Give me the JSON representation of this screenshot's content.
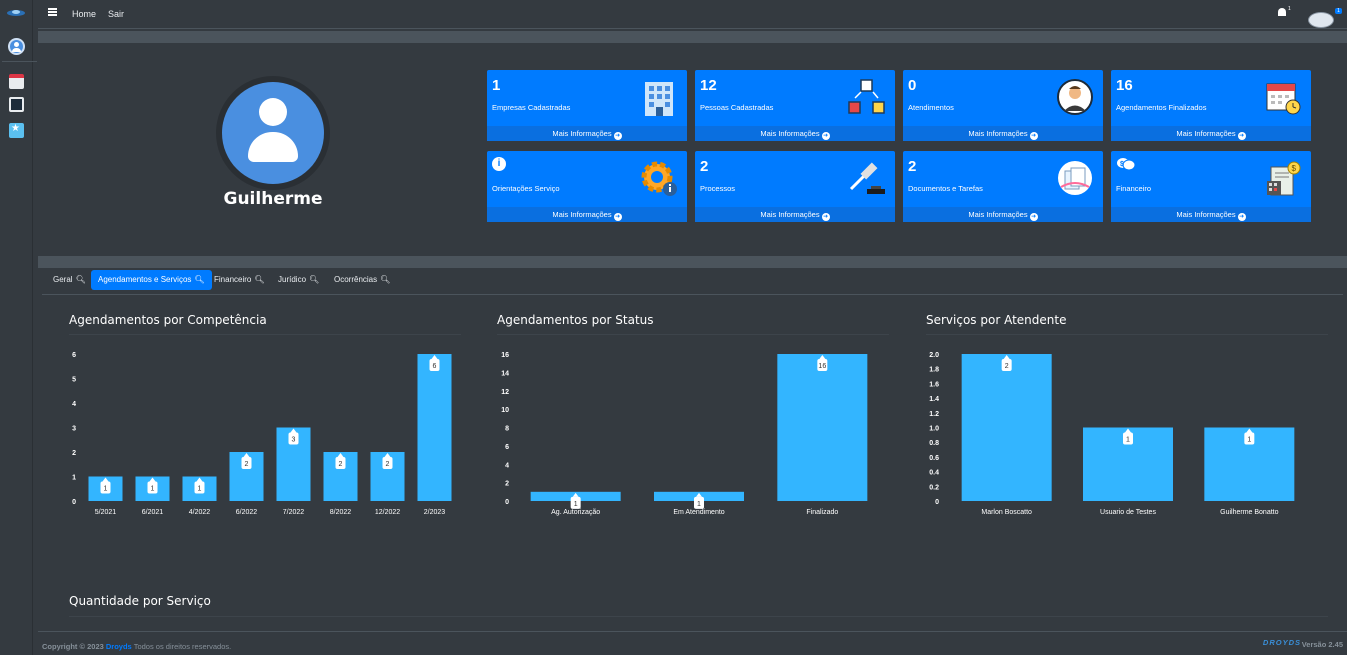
{
  "navbar": {
    "home": "Home",
    "sair": "Sair",
    "bell_count": "1",
    "user_badge": "1"
  },
  "profile": {
    "name": "Guilherme"
  },
  "boxes": [
    {
      "num": "1",
      "label": "Empresas Cadastradas",
      "footer": "Mais Informações",
      "icon": "building-icon"
    },
    {
      "num": "12",
      "label": "Pessoas Cadastradas",
      "footer": "Mais Informações",
      "icon": "people-network-icon"
    },
    {
      "num": "0",
      "label": "Atendimentos",
      "footer": "Mais Informações",
      "icon": "attendant-icon"
    },
    {
      "num": "16",
      "label": "Agendamentos Finalizados",
      "footer": "Mais Informações",
      "icon": "calendar-clock-icon"
    },
    {
      "num": "",
      "label": "Orientações Serviço",
      "footer": "Mais Informações",
      "icon": "gear-info-icon"
    },
    {
      "num": "2",
      "label": "Processos",
      "footer": "Mais Informações",
      "icon": "gavel-icon"
    },
    {
      "num": "2",
      "label": "Documentos e Tarefas",
      "footer": "Mais Informações",
      "icon": "documents-icon"
    },
    {
      "num": "",
      "label": "Financeiro",
      "footer": "Mais Informações",
      "icon": "finance-icon"
    }
  ],
  "tabs": [
    {
      "label": "Geral"
    },
    {
      "label": "Agendamentos e Serviços"
    },
    {
      "label": "Financeiro"
    },
    {
      "label": "Jurídico"
    },
    {
      "label": "Ocorrências"
    }
  ],
  "sections": {
    "quantidade": "Quantidade por Serviço"
  },
  "footer": {
    "copyright": "Copyright © 2023",
    "brand": "Droyds",
    "rights": "Todos os direitos reservados.",
    "logo_text": "DROYDS",
    "version": "Versão 2.45"
  },
  "chart_data": [
    {
      "type": "bar",
      "title": "Agendamentos por Competência",
      "categories": [
        "5/2021",
        "6/2021",
        "4/2022",
        "6/2022",
        "7/2022",
        "8/2022",
        "12/2022",
        "2/2023"
      ],
      "values": [
        1,
        1,
        1,
        2,
        3,
        2,
        2,
        6
      ],
      "yticks": [
        "0",
        "1",
        "2",
        "3",
        "4",
        "5",
        "6"
      ],
      "ylim": [
        0,
        6
      ],
      "color": "#33b5ff"
    },
    {
      "type": "bar",
      "title": "Agendamentos por Status",
      "categories": [
        "Ag. Autorização",
        "Em Atendimento",
        "Finalizado"
      ],
      "values": [
        1,
        1,
        16
      ],
      "yticks": [
        "0",
        "2",
        "4",
        "6",
        "8",
        "10",
        "12",
        "14",
        "16"
      ],
      "ylim": [
        0,
        16
      ],
      "color": "#33b5ff"
    },
    {
      "type": "bar",
      "title": "Serviços por Atendente",
      "categories": [
        "Marlon Boscatto",
        "Usuario de Testes",
        "Guilherme Bonatto"
      ],
      "values": [
        2,
        1,
        1
      ],
      "yticks": [
        "0",
        "0.2",
        "0.4",
        "0.6",
        "0.8",
        "1.0",
        "1.2",
        "1.4",
        "1.6",
        "1.8",
        "2.0"
      ],
      "ylim": [
        0,
        2
      ],
      "color": "#33b5ff"
    }
  ]
}
